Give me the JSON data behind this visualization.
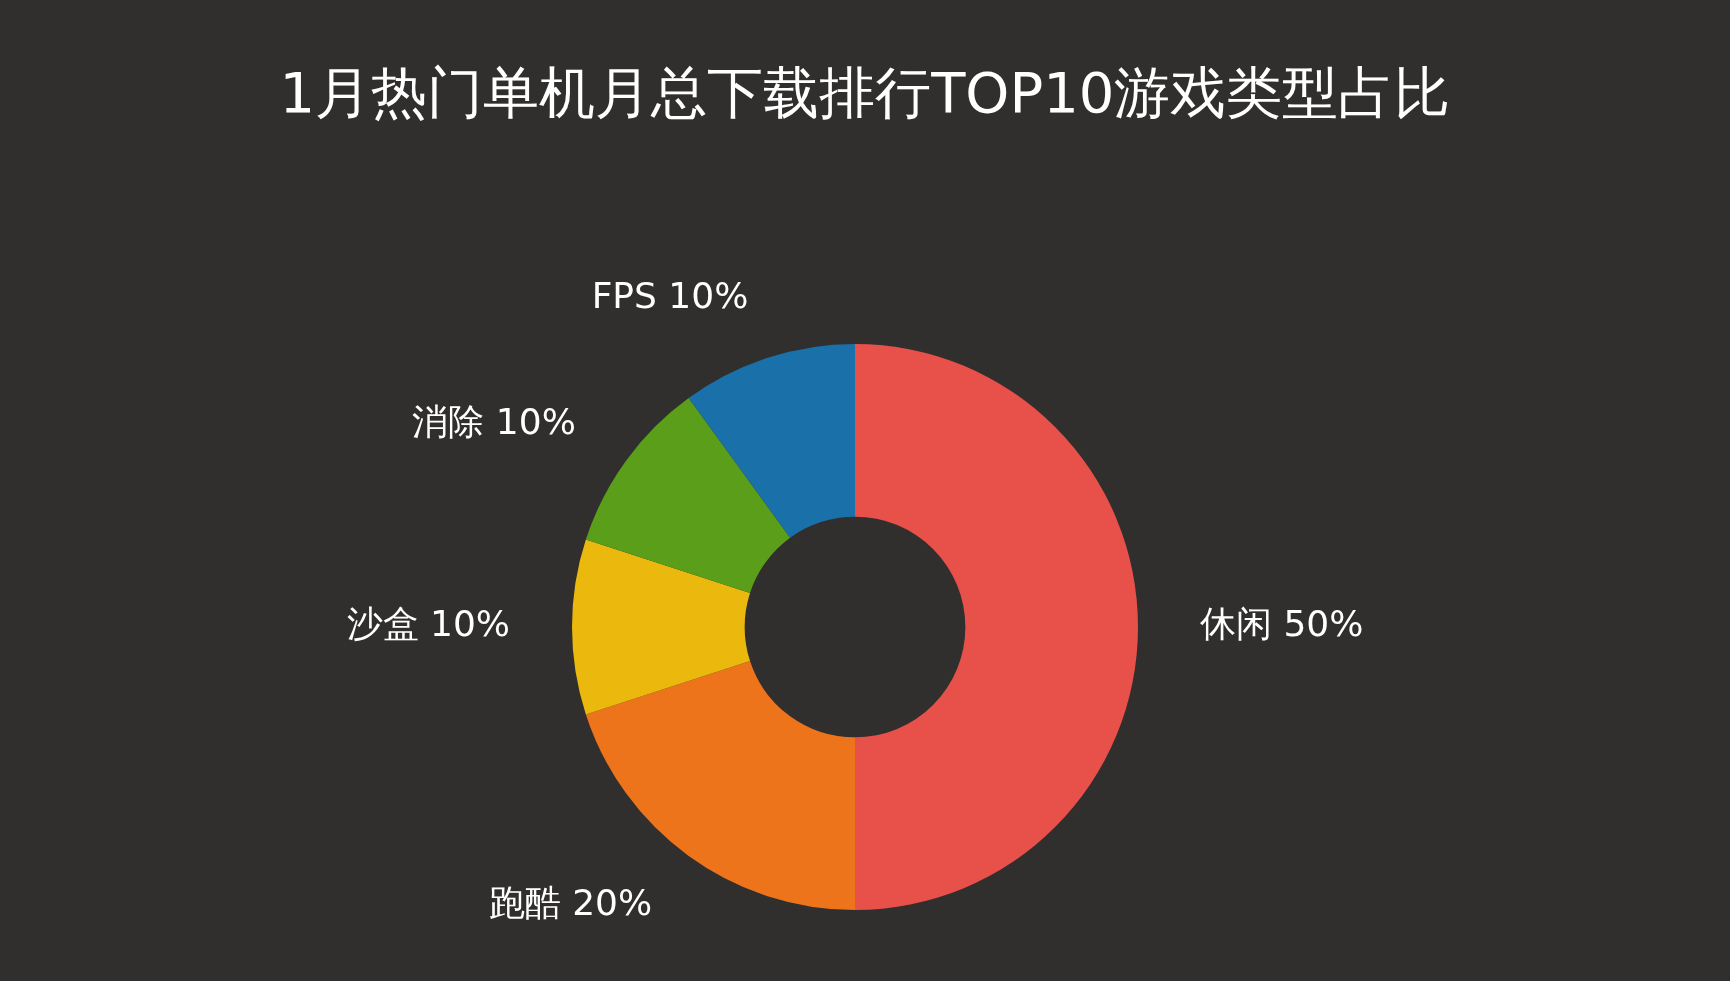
{
  "chart_data": {
    "type": "donut",
    "title": "1月热门单机月总下载排行TOP10游戏类型占比",
    "categories": [
      "休闲",
      "跑酷",
      "沙盒",
      "消除",
      "FPS"
    ],
    "values": [
      50,
      20,
      10,
      10,
      10
    ],
    "value_labels": [
      "50%",
      "20%",
      "10%",
      "10%",
      "10%"
    ],
    "colors": [
      "#e8504a",
      "#ee741c",
      "#ebb80e",
      "#5a9e1a",
      "#1a70a8"
    ]
  }
}
